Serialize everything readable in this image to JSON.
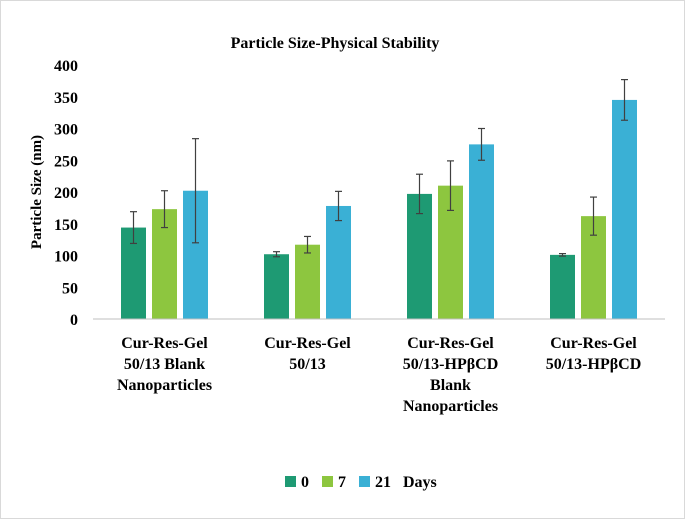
{
  "chart_data": {
    "type": "bar",
    "title": "Particle Size-Physical Stability",
    "xlabel": "",
    "ylabel": "Particle Size (nm)",
    "ylim": [
      0,
      400
    ],
    "yticks": [
      "0",
      "50",
      "100",
      "150",
      "200",
      "250",
      "300",
      "350",
      "400"
    ],
    "grid": false,
    "legend_position": "bottom",
    "legend_suffix": "Days",
    "categories": [
      [
        "Cur-Res-Gel",
        "50/13 Blank",
        "Nanoparticles"
      ],
      [
        "Cur-Res-Gel",
        "50/13"
      ],
      [
        "Cur-Res-Gel",
        "50/13-HPβCD",
        "Blank",
        "Nanoparticles"
      ],
      [
        "Cur-Res-Gel",
        "50/13-HPβCD"
      ]
    ],
    "series": [
      {
        "name": "0",
        "color": "#1e9a73",
        "values": [
          144,
          102,
          197,
          101
        ],
        "errors": [
          25,
          4,
          31,
          2
        ]
      },
      {
        "name": "7",
        "color": "#8dc63f",
        "values": [
          173,
          117,
          210,
          162
        ],
        "errors": [
          29,
          13,
          39,
          30
        ]
      },
      {
        "name": "21",
        "color": "#3ab0d5",
        "values": [
          202,
          178,
          275,
          345
        ],
        "errors": [
          82,
          23,
          25,
          32
        ]
      }
    ]
  }
}
